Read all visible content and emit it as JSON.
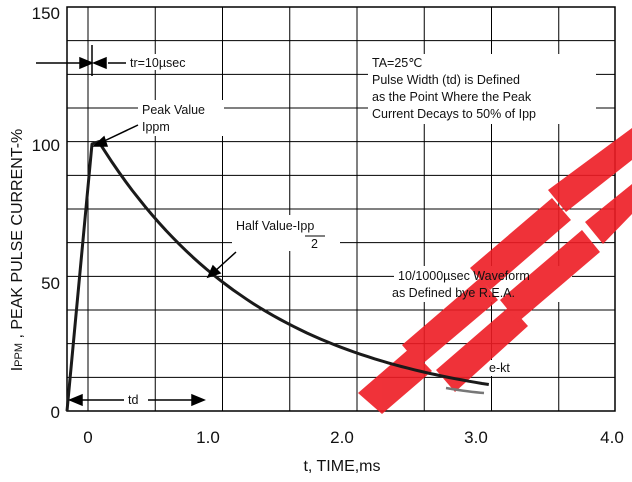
{
  "chart_data": {
    "type": "line",
    "xlabel": "t, TIME,ms",
    "ylabel_main": "I",
    "ylabel_sub": "PPM",
    "ylabel_rest": " , PEAK PULSE CURRENT-%",
    "xlim": [
      -0.1,
      4.0
    ],
    "ylim": [
      0,
      150
    ],
    "x_ticks": [
      "0",
      "1.0",
      "2.0",
      "3.0",
      "4.0"
    ],
    "x_tick_values": [
      0,
      1,
      2,
      3,
      4
    ],
    "y_ticks": [
      "0",
      "50",
      "100",
      "150"
    ],
    "y_tick_values": [
      0,
      50,
      100,
      150
    ],
    "grid": true,
    "series": [
      {
        "x": [
          -0.15,
          0.05,
          0.15,
          0.25,
          0.35,
          0.45,
          0.55,
          0.65,
          0.75,
          0.85,
          0.95,
          1.0,
          1.1,
          1.2,
          1.3,
          1.4,
          1.5,
          1.6,
          1.7,
          1.8,
          1.9,
          2.0,
          2.2,
          2.4,
          2.6,
          2.8,
          3.0,
          3.05
        ],
        "y": [
          0,
          100,
          90.5,
          82,
          74.3,
          67.3,
          61,
          55.3,
          50.1,
          45.4,
          41.2,
          50,
          45.5,
          41.4,
          37.6,
          34.2,
          31.1,
          28.3,
          25.7,
          23.4,
          21.3,
          20,
          16.5,
          13.6,
          11.3,
          9.4,
          8,
          7.8
        ]
      }
    ],
    "annotations": {
      "rise_time": "tr=10µsec",
      "peak_line1": "Peak Value",
      "peak_line2": "Ippm",
      "half_line1": "Half Value-Ipp",
      "half_line2": "2",
      "ta": "TA=25℃",
      "pw1": "Pulse Width (td) is Defined",
      "pw2": "as the Point Where the Peak",
      "pw3": "Current Decays to 50% of Ipp",
      "wave1": "10/1000µsec Waveform",
      "wave2": "as Defined bye R.E.A.",
      "ekt": "e-kt",
      "td": "td"
    },
    "colors": {
      "curve": "#1a1a1a",
      "watermark": "#ee1c24"
    }
  }
}
